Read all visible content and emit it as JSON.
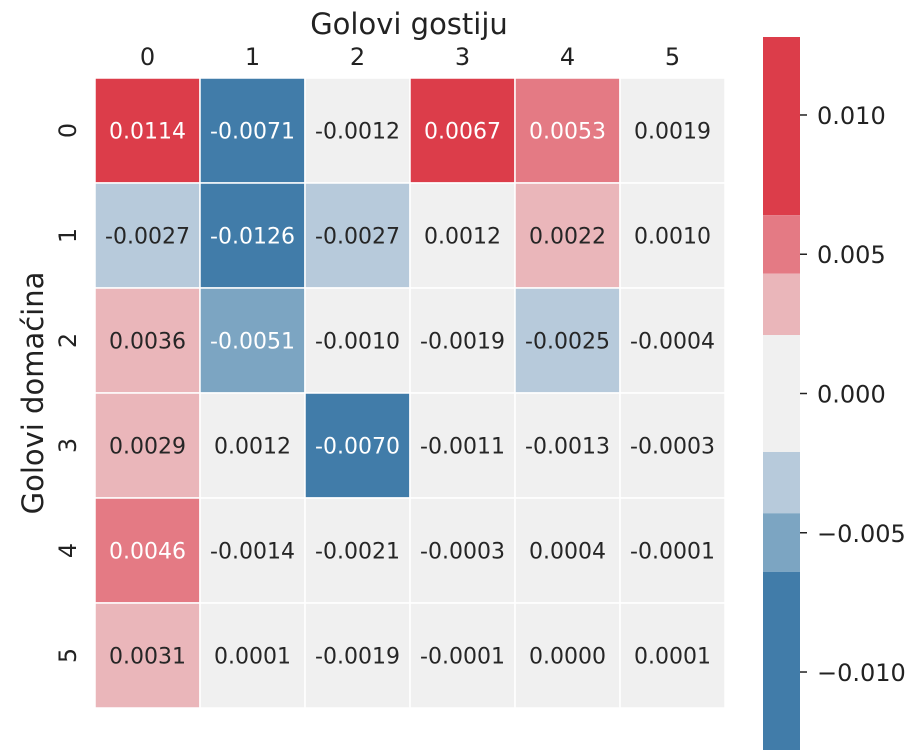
{
  "chart_data": {
    "type": "heatmap",
    "title": "",
    "xlabel": "Golovi gostiju",
    "ylabel": "Golovi domaćina",
    "x_categories": [
      "0",
      "1",
      "2",
      "3",
      "4",
      "5"
    ],
    "y_categories": [
      "0",
      "1",
      "2",
      "3",
      "4",
      "5"
    ],
    "values": [
      [
        0.0114,
        -0.0071,
        -0.0012,
        0.0067,
        0.0053,
        0.0019
      ],
      [
        -0.0027,
        -0.0126,
        -0.0027,
        0.0012,
        0.0022,
        0.001
      ],
      [
        0.0036,
        -0.0051,
        -0.001,
        -0.0019,
        -0.0025,
        -0.0004
      ],
      [
        0.0029,
        0.0012,
        -0.007,
        -0.0011,
        -0.0013,
        -0.0003
      ],
      [
        0.0046,
        -0.0014,
        -0.0021,
        -0.0003,
        0.0004,
        -0.0001
      ],
      [
        0.0031,
        0.0001,
        -0.0019,
        -0.0001,
        0.0,
        0.0001
      ]
    ],
    "cell_labels": [
      [
        "0.0114",
        "-0.0071",
        "-0.0012",
        "0.0067",
        "0.0053",
        "0.0019"
      ],
      [
        "-0.0027",
        "-0.0126",
        "-0.0027",
        "0.0012",
        "0.0022",
        "0.0010"
      ],
      [
        "0.0036",
        "-0.0051",
        "-0.0010",
        "-0.0019",
        "-0.0025",
        "-0.0004"
      ],
      [
        "0.0029",
        "0.0012",
        "-0.0070",
        "-0.0011",
        "-0.0013",
        "-0.0003"
      ],
      [
        "0.0046",
        "-0.0014",
        "-0.0021",
        "-0.0003",
        "0.0004",
        "-0.0001"
      ],
      [
        "0.0031",
        "0.0001",
        "-0.0019",
        "-0.0001",
        "0.0000",
        "0.0001"
      ]
    ],
    "x_axis_position": "top",
    "grid": false,
    "colorbar": {
      "vmin": -0.0128,
      "vmax": 0.0128,
      "ticks": [
        0.01,
        0.005,
        0.0,
        -0.005,
        -0.01
      ],
      "tick_labels": [
        "0.010",
        "0.005",
        "0.000",
        "−0.005",
        "−0.010"
      ],
      "bins": [
        {
          "from": 0.0064,
          "to": 0.0128,
          "color": "#dc3d4a"
        },
        {
          "from": 0.0043,
          "to": 0.0064,
          "color": "#e47a84"
        },
        {
          "from": 0.0021,
          "to": 0.0043,
          "color": "#eab6ba"
        },
        {
          "from": -0.0021,
          "to": 0.0021,
          "color": "#f0f0f0"
        },
        {
          "from": -0.0043,
          "to": -0.0021,
          "color": "#b7cadb"
        },
        {
          "from": -0.0064,
          "to": -0.0043,
          "color": "#7ca5c2"
        },
        {
          "from": -0.0128,
          "to": -0.0064,
          "color": "#417ca9"
        }
      ]
    },
    "text_colors": {
      "dark": "#262626",
      "light": "#ffffff"
    }
  }
}
